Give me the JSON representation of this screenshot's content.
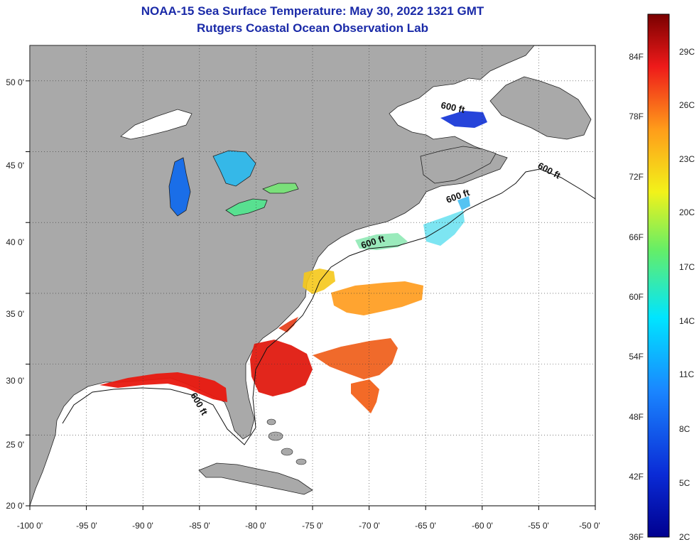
{
  "header": {
    "title": "NOAA-15 Sea Surface Temperature:  May 30, 2022 1321 GMT",
    "subtitle": "Rutgers Coastal Ocean Observation Lab"
  },
  "map": {
    "lon_range": [
      -100,
      -50
    ],
    "lat_range": [
      20,
      52.5
    ],
    "x_ticks": [
      "-100 0'",
      "-95 0'",
      "-90 0'",
      "-85 0'",
      "-80 0'",
      "-75 0'",
      "-70 0'",
      "-65 0'",
      "-60 0'",
      "-55 0'",
      "-50 0'"
    ],
    "y_ticks": [
      "20 0'",
      "25 0'",
      "30 0'",
      "35 0'",
      "40 0'",
      "45 0'",
      "50 0'"
    ],
    "grid": "dotted",
    "contour_label": "600 ft",
    "colors": {
      "land": "#a9a9a9",
      "ocean": "#ffffff",
      "title": "#1a2aa8"
    }
  },
  "colorbar": {
    "fahrenheit": [
      "84F",
      "78F",
      "72F",
      "66F",
      "60F",
      "54F",
      "48F",
      "42F",
      "36F"
    ],
    "celsius": [
      "29C",
      "26C",
      "23C",
      "20C",
      "17C",
      "14C",
      "11C",
      "8C",
      "5C",
      "2C"
    ]
  }
}
